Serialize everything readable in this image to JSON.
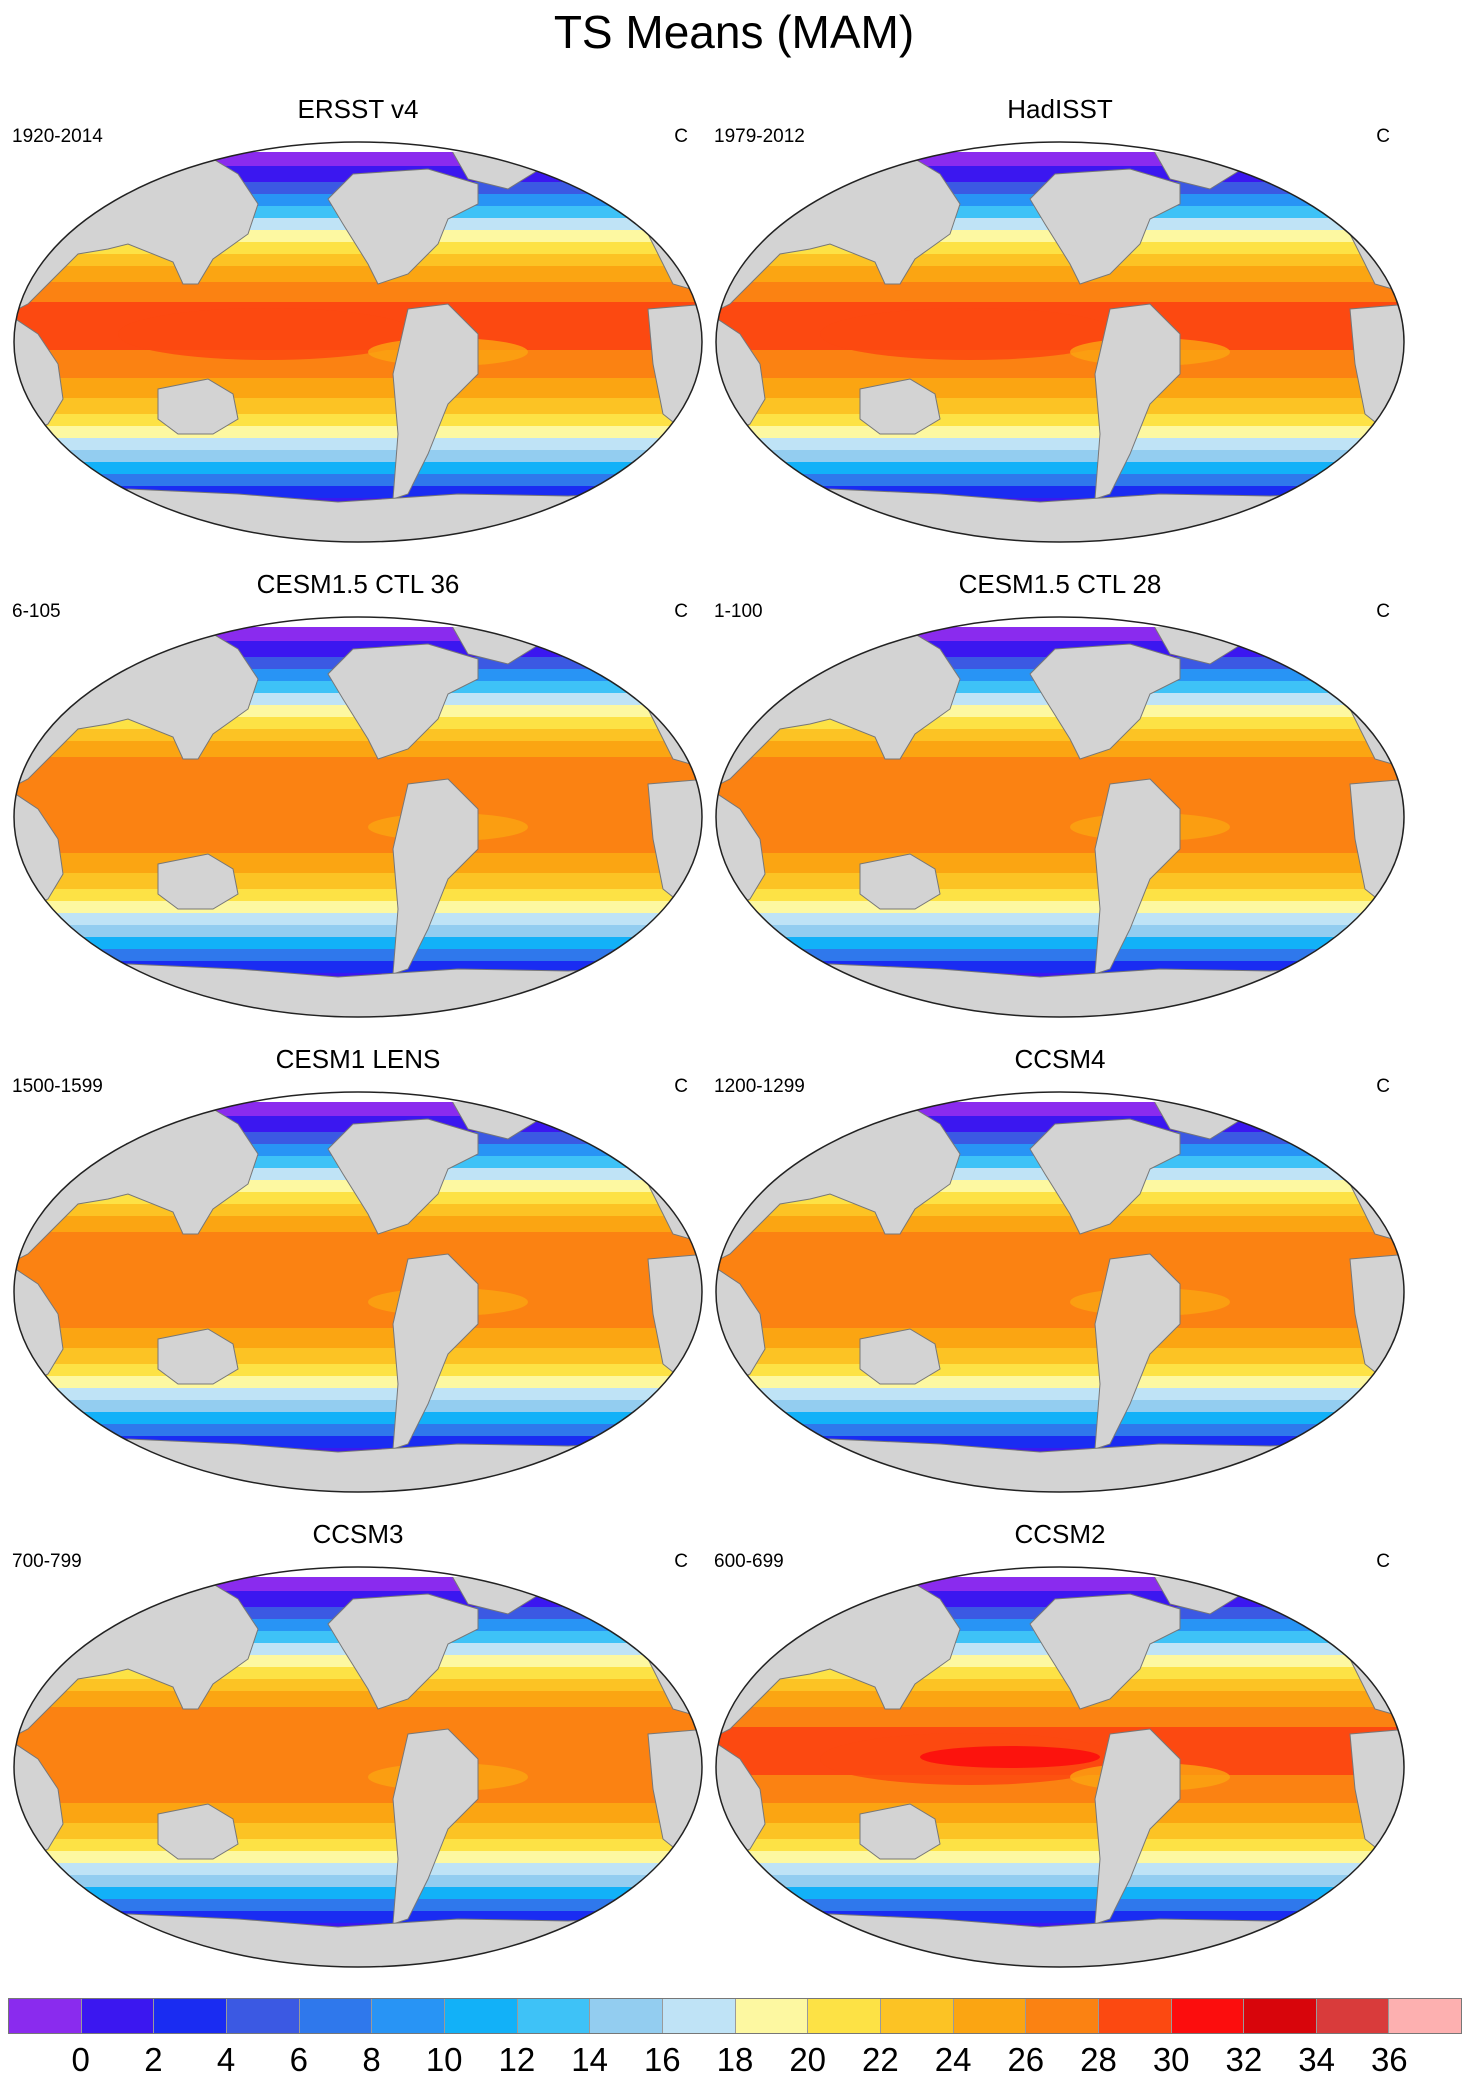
{
  "figure": {
    "title": "TS Means (MAM)"
  },
  "panels": [
    {
      "title": "ERSST v4",
      "period": "1920-2014",
      "units": "C",
      "variant": 0
    },
    {
      "title": "HadISST",
      "period": "1979-2012",
      "units": "C",
      "variant": 0
    },
    {
      "title": "CESM1.5 CTL 36",
      "period": "6-105",
      "units": "C",
      "variant": 1
    },
    {
      "title": "CESM1.5 CTL 28",
      "period": "1-100",
      "units": "C",
      "variant": 1
    },
    {
      "title": "CESM1 LENS",
      "period": "1500-1599",
      "units": "C",
      "variant": 1
    },
    {
      "title": "CCSM4",
      "period": "1200-1299",
      "units": "C",
      "variant": 1
    },
    {
      "title": "CCSM3",
      "period": "700-799",
      "units": "C",
      "variant": 1
    },
    {
      "title": "CCSM2",
      "period": "600-699",
      "units": "C",
      "variant": 2
    }
  ],
  "colorbar": {
    "labels": [
      "0",
      "2",
      "4",
      "6",
      "8",
      "10",
      "12",
      "14",
      "16",
      "18",
      "20",
      "22",
      "24",
      "26",
      "28",
      "30",
      "32",
      "34",
      "36"
    ],
    "colors": [
      "#8a2bee",
      "#3b17f0",
      "#1a2cf2",
      "#3b59e3",
      "#2f78ec",
      "#2894f5",
      "#12b1f8",
      "#3ec2f7",
      "#93cdf0",
      "#bfe3f6",
      "#fdf8a1",
      "#fde245",
      "#fcc324",
      "#fba512",
      "#fb8212",
      "#fc4911",
      "#fc0d0d",
      "#d8050b",
      "#d93b3b",
      "#fdb0b0"
    ],
    "land_color": "#d3d3d3"
  }
}
